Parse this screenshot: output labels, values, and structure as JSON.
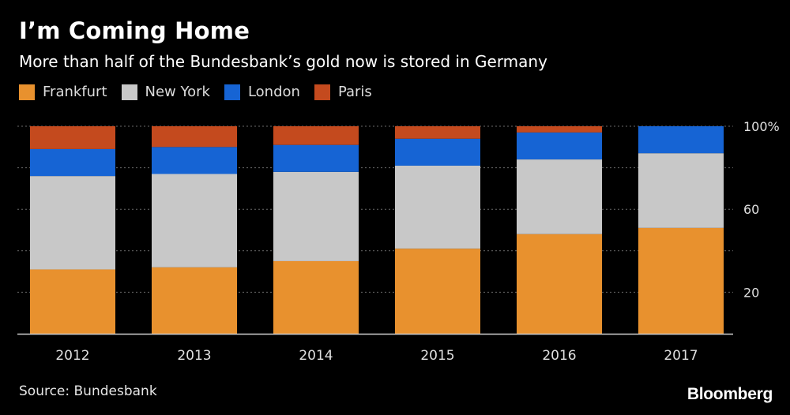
{
  "title": "I’m Coming Home",
  "subtitle": "More than half of the Bundesbank’s gold now is stored in Germany",
  "source": "Source: Bundesbank",
  "brand": "Bloomberg",
  "colors": {
    "Frankfurt": "#e8912e",
    "New York": "#c8c8c8",
    "London": "#1664d4",
    "Paris": "#c44a1e",
    "gridline": "#6a6a6a",
    "axis": "#d0d0d0"
  },
  "chart_data": {
    "type": "bar",
    "stacked": true,
    "categories": [
      "2012",
      "2013",
      "2014",
      "2015",
      "2016",
      "2017"
    ],
    "series": [
      {
        "name": "Frankfurt",
        "values": [
          31,
          32,
          35,
          41,
          48,
          51
        ]
      },
      {
        "name": "New York",
        "values": [
          45,
          45,
          43,
          40,
          36,
          36
        ]
      },
      {
        "name": "London",
        "values": [
          13,
          13,
          13,
          13,
          13,
          13
        ]
      },
      {
        "name": "Paris",
        "values": [
          11,
          10,
          9,
          6,
          3,
          0
        ]
      }
    ],
    "ylim": [
      0,
      100
    ],
    "yticks": [
      20,
      60,
      100
    ],
    "ytick_labels": [
      "20",
      "60",
      "100%"
    ],
    "grid": true,
    "legend_position": "top-left",
    "xlabel": "",
    "ylabel": ""
  }
}
